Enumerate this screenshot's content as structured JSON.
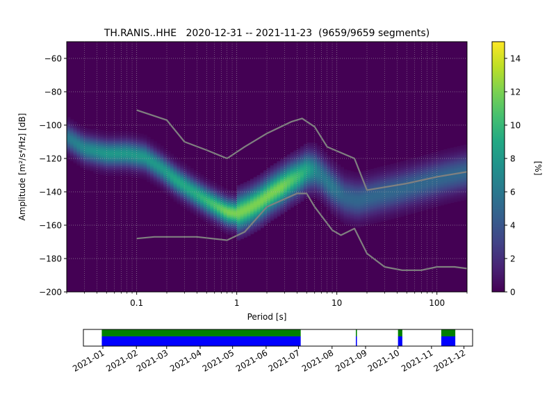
{
  "chart_data": [
    {
      "type": "heatmap",
      "title": "TH.RANIS..HHE   2020-12-31 -- 2021-11-23  (9659/9659 segments)",
      "xlabel": "Period [s]",
      "ylabel": "Amplitude [m²/s⁴/Hz] [dB]",
      "xscale": "log",
      "xlim": [
        0.02,
        200
      ],
      "ylim": [
        -200,
        -50
      ],
      "xticks": [
        {
          "value": 0.1,
          "label": "0.1"
        },
        {
          "value": 1,
          "label": "1"
        },
        {
          "value": 10,
          "label": "10"
        },
        {
          "value": 100,
          "label": "100"
        }
      ],
      "yticks": [
        {
          "value": -60,
          "label": "−60"
        },
        {
          "value": -80,
          "label": "−80"
        },
        {
          "value": -100,
          "label": "−100"
        },
        {
          "value": -120,
          "label": "−120"
        },
        {
          "value": -140,
          "label": "−140"
        },
        {
          "value": -160,
          "label": "−160"
        },
        {
          "value": -180,
          "label": "−180"
        },
        {
          "value": -200,
          "label": "−200"
        }
      ],
      "grid": true,
      "background_color": "#440154",
      "colormap": "viridis",
      "colorbar": {
        "label": "[%]",
        "range": [
          0,
          15
        ],
        "ticks": [
          {
            "value": 0,
            "label": "0"
          },
          {
            "value": 2,
            "label": "2"
          },
          {
            "value": 4,
            "label": "4"
          },
          {
            "value": 6,
            "label": "6"
          },
          {
            "value": 8,
            "label": "8"
          },
          {
            "value": 10,
            "label": "10"
          },
          {
            "value": 12,
            "label": "12"
          },
          {
            "value": 14,
            "label": "14"
          }
        ]
      },
      "density_mode": {
        "x": [
          0.02,
          0.03,
          0.05,
          0.08,
          0.12,
          0.18,
          0.25,
          0.35,
          0.5,
          0.65,
          0.8,
          1.0,
          1.3,
          1.7,
          2.2,
          2.8,
          3.5,
          4.3,
          5.0,
          6.0,
          7.0,
          9.0,
          12,
          16,
          25,
          40,
          70,
          120,
          200
        ],
        "y": [
          -107,
          -114,
          -117,
          -117,
          -119,
          -126,
          -133,
          -139,
          -145,
          -149,
          -152,
          -153,
          -150,
          -146,
          -141,
          -137,
          -133,
          -130,
          -127,
          -127,
          -130,
          -137,
          -143,
          -145,
          -142,
          -139,
          -135,
          -131,
          -128
        ],
        "peak_percent": [
          6,
          7,
          8,
          8,
          8,
          8,
          9,
          9,
          10,
          11,
          12,
          12,
          12,
          12,
          12,
          12,
          11,
          10,
          9,
          7,
          6,
          6,
          5,
          5,
          5,
          5,
          5,
          5,
          5
        ]
      },
      "series": [
        {
          "x": [
            0.1,
            0.2,
            0.3,
            0.5,
            0.8,
            1.2,
            2.0,
            3.5,
            4.5,
            6.0,
            8.0,
            15,
            20,
            50,
            100,
            200
          ],
          "y": [
            -91,
            -97,
            -110,
            -115,
            -120,
            -113,
            -105,
            -98,
            -96,
            -101,
            -113,
            -120,
            -139,
            -135,
            -131,
            -128
          ]
        },
        {
          "x": [
            0.1,
            0.15,
            0.2,
            0.4,
            0.8,
            1.2,
            2.0,
            4.0,
            5.0,
            6.0,
            9.0,
            11,
            15,
            20,
            30,
            45,
            70,
            100,
            150,
            200
          ],
          "y": [
            -168,
            -167,
            -167,
            -167,
            -169,
            -164,
            -149,
            -141,
            -141,
            -149,
            -163,
            -166,
            -162,
            -177,
            -185,
            -187,
            -187,
            -185,
            -185,
            -186
          ]
        }
      ],
      "line_color": "#808080"
    },
    {
      "type": "timeline",
      "xlim": [
        "2020-12-14",
        "2021-12-09"
      ],
      "xticks": [
        "2021-01",
        "2021-02",
        "2021-03",
        "2021-04",
        "2021-05",
        "2021-06",
        "2021-07",
        "2021-08",
        "2021-09",
        "2021-10",
        "2021-11",
        "2021-12"
      ],
      "colors": {
        "data": "#008000",
        "used": "#0000ff",
        "gap": "#ffffff"
      },
      "segments": [
        {
          "start": "2020-12-31",
          "end": "2021-07-03"
        },
        {
          "start": "2021-08-23",
          "end": "2021-08-24"
        },
        {
          "start": "2021-10-01",
          "end": "2021-10-05"
        },
        {
          "start": "2021-11-10",
          "end": "2021-11-23"
        }
      ]
    }
  ]
}
